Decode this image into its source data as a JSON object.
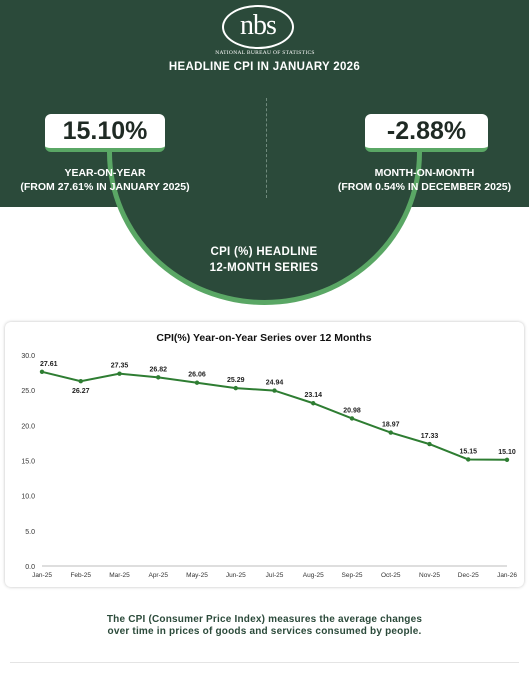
{
  "header": {
    "logo_text": "nbs",
    "logo_subtitle": "NATIONAL BUREAU OF STATISTICS",
    "headline": "HEADLINE CPI IN JANUARY 2026"
  },
  "yoy": {
    "value": "15.10%",
    "label": "YEAR-ON-YEAR",
    "sublabel": "(FROM 27.61% IN JANUARY 2025)"
  },
  "mom": {
    "value": "-2.88%",
    "label": "MONTH-ON-MONTH",
    "sublabel": "(FROM 0.54% IN DECEMBER 2025)"
  },
  "series_title": {
    "line1": "CPI (%)  HEADLINE",
    "line2": "12-MONTH SERIES"
  },
  "chart_data": {
    "type": "line",
    "title": "CPI(%) Year-on-Year Series over 12 Months",
    "categories": [
      "Jan-25",
      "Feb-25",
      "Mar-25",
      "Apr-25",
      "May-25",
      "Jun-25",
      "Jul-25",
      "Aug-25",
      "Sep-25",
      "Oct-25",
      "Nov-25",
      "Dec-25",
      "Jan-26"
    ],
    "series": [
      {
        "values": [
          27.61,
          26.27,
          27.35,
          26.82,
          26.06,
          25.29,
          24.94,
          23.14,
          20.98,
          18.97,
          17.33,
          15.15,
          15.1
        ]
      }
    ],
    "data_labels": [
      "27.61",
      "26.27",
      "27.35",
      "26.82",
      "26.06",
      "25.29",
      "24.94",
      "23.14",
      "20.98",
      "18.97",
      "17.33",
      "15.15",
      "15.10"
    ],
    "ylim": [
      0,
      30
    ],
    "yticks": [
      "0.0",
      "5.0",
      "10.0",
      "15.0",
      "20.0",
      "25.0",
      "30.0"
    ],
    "grid": false,
    "color": "#2e7d32"
  },
  "footnote": {
    "line1": "The CPI (Consumer Price Index) measures the average changes",
    "line2": "over time in prices of goods and services consumed by people."
  }
}
